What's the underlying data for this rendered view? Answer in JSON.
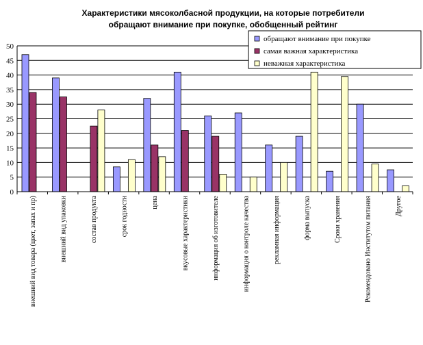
{
  "chart_data": {
    "type": "bar",
    "title": "Характеристики мясоколбасной продукции, на которые потребители обращают внимание при покупке, обобщенный рейтинг",
    "title_lines": [
      "Характеристики мясоколбасной продукции, на которые потребители",
      "обращают внимание при покупке, обобщенный рейтинг"
    ],
    "xlabel": "",
    "ylabel": "",
    "ylim": [
      0,
      50
    ],
    "yticks": [
      0,
      5,
      10,
      15,
      20,
      25,
      30,
      35,
      40,
      45,
      50
    ],
    "grid": true,
    "legend_position": "top-right",
    "categories": [
      "внешний вид товара (цвет, запах и пр)",
      "внешний вид упаковки",
      "состав продукта",
      "срок годности",
      "цена",
      "вкусовые характеристики",
      "информация об изготовителе",
      "информация о контроле качества",
      "рекламная информация",
      "форма выпуска",
      "Сроки хранения",
      "Рекомендовано Институтом питания",
      "Другое"
    ],
    "series": [
      {
        "name": "обращают внимание при покупке",
        "color": "#9999ff",
        "values": [
          47,
          39,
          null,
          8.5,
          32,
          41,
          26,
          27,
          16,
          19,
          7,
          30,
          7.5
        ]
      },
      {
        "name": "самая важная характеристика",
        "color": "#993366",
        "values": [
          34,
          32.5,
          22.5,
          0,
          16,
          21,
          19,
          0,
          0,
          0,
          0,
          0,
          0
        ]
      },
      {
        "name": "неважная характеристика",
        "color": "#ffffcc",
        "values": [
          0,
          0,
          28,
          11,
          12,
          0,
          6,
          5,
          10,
          41,
          39.5,
          9.5,
          2
        ]
      }
    ]
  }
}
